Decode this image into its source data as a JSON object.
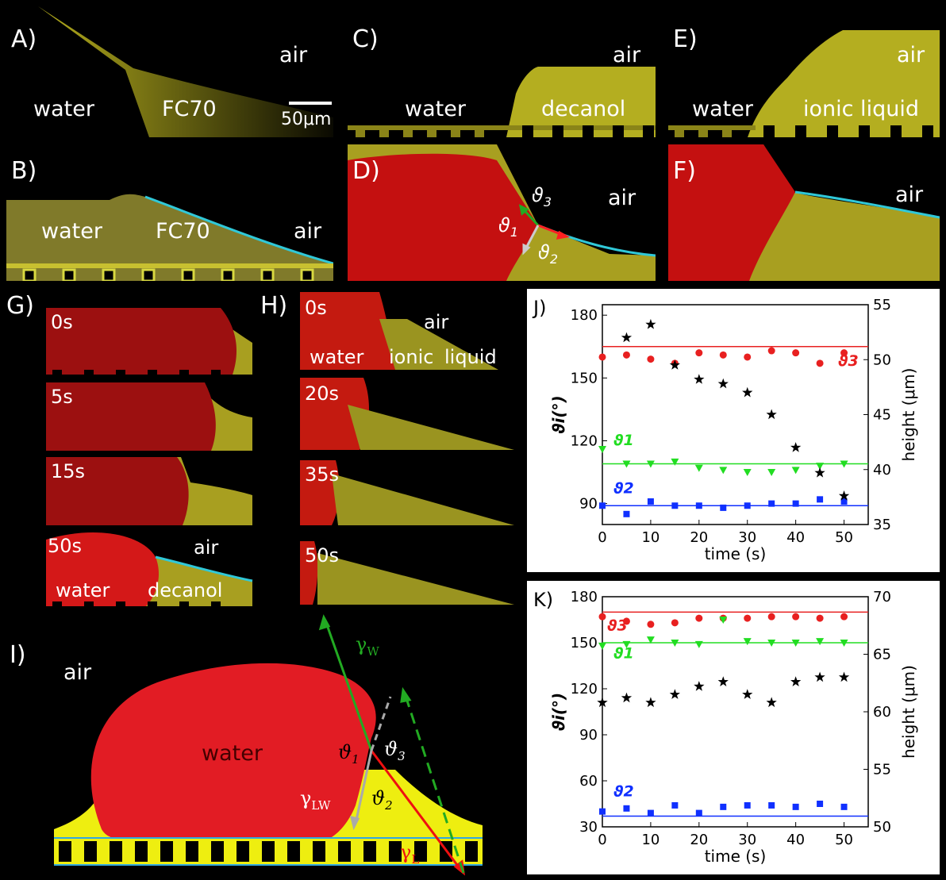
{
  "colors": {
    "water": "#d01818",
    "liquid": "#c8c020",
    "cyan": "#30c8d8",
    "green": "#22aa22",
    "grey": "#aaaaaa",
    "red_arrow": "#ff2020",
    "blue": "#1030ff",
    "star": "#000000"
  },
  "panelA": {
    "label": "A)",
    "water": "water",
    "liquid": "FC70",
    "air": "air",
    "scale": "50μm"
  },
  "panelB": {
    "label": "B)",
    "water": "water",
    "liquid": "FC70",
    "air": "air"
  },
  "panelC": {
    "label": "C)",
    "water": "water",
    "liquid": "decanol",
    "air": "air"
  },
  "panelD": {
    "label": "D)",
    "air": "air",
    "t1": "ϑ",
    "s1": "1",
    "t2": "ϑ",
    "s2": "2",
    "t3": "ϑ",
    "s3": "3"
  },
  "panelE": {
    "label": "E)",
    "water": "water",
    "liquid": "ionic liquid",
    "air": "air"
  },
  "panelF": {
    "label": "F)",
    "air": "air"
  },
  "panelG": {
    "label": "G)",
    "frames": [
      "0s",
      "5s",
      "15s",
      "50s"
    ],
    "air": "air",
    "water": "water",
    "liquid": "decanol"
  },
  "panelH": {
    "label": "H)",
    "frames": [
      "0s",
      "20s",
      "35s",
      "50s"
    ],
    "air": "air",
    "water": "water",
    "liquid1": "ionic",
    "liquid2": "liquid"
  },
  "panelI": {
    "label": "I)",
    "air": "air",
    "water": "water",
    "gW": "γ",
    "gWs": "W",
    "gLW": "γ",
    "gLWs": "LW",
    "gL": "γ",
    "gLs": "L",
    "t1": "ϑ",
    "s1": "1",
    "t2": "ϑ",
    "s2": "2",
    "t3": "ϑ",
    "s3": "3"
  },
  "chart_data": [
    {
      "type": "scatter",
      "panel": "J)",
      "xlabel": "time (s)",
      "ylabel_left": "ϑi(°)",
      "ylabel_right": "height (μm)",
      "xlim": [
        0,
        55
      ],
      "xticks": [
        0,
        10,
        20,
        30,
        40,
        50
      ],
      "ylim_left": [
        80,
        185
      ],
      "yticks_left": [
        90,
        120,
        150,
        180
      ],
      "ylim_right": [
        35,
        55
      ],
      "yticks_right": [
        35,
        40,
        45,
        50,
        55
      ],
      "series": [
        {
          "name": "ϑ3",
          "marker": "circle",
          "color": "#e82020",
          "x": [
            0,
            5,
            10,
            15,
            20,
            25,
            30,
            35,
            40,
            45,
            50
          ],
          "y": [
            160,
            161,
            159,
            157,
            162,
            161,
            160,
            163,
            162,
            157,
            162
          ],
          "fit": 165
        },
        {
          "name": "ϑ1",
          "marker": "triangle-down",
          "color": "#22dd22",
          "x": [
            0,
            5,
            10,
            15,
            20,
            25,
            30,
            35,
            40,
            45,
            50
          ],
          "y": [
            116,
            109,
            109,
            110,
            107,
            106,
            105,
            105,
            106,
            108,
            109
          ],
          "fit": 109
        },
        {
          "name": "ϑ2",
          "marker": "square",
          "color": "#1030ff",
          "x": [
            0,
            5,
            10,
            15,
            20,
            25,
            30,
            35,
            40,
            45,
            50
          ],
          "y": [
            89,
            85,
            91,
            89,
            89,
            88,
            89,
            90,
            90,
            92,
            91
          ],
          "fit": 89
        },
        {
          "marker": "star",
          "color": "#000000",
          "axis": "right",
          "x": [
            5,
            10,
            15,
            20,
            25,
            30,
            35,
            40,
            45,
            50
          ],
          "y": [
            52,
            53.2,
            49.5,
            48.2,
            47.8,
            47,
            45,
            42,
            39.7,
            37.6
          ]
        }
      ]
    },
    {
      "type": "scatter",
      "panel": "K)",
      "xlabel": "time (s)",
      "ylabel_left": "ϑi(°)",
      "ylabel_right": "height (μm)",
      "xlim": [
        0,
        55
      ],
      "xticks": [
        0,
        10,
        20,
        30,
        40,
        50
      ],
      "ylim_left": [
        30,
        180
      ],
      "yticks_left": [
        30,
        60,
        90,
        120,
        150,
        180
      ],
      "ylim_right": [
        50,
        70
      ],
      "yticks_right": [
        50,
        55,
        60,
        65,
        70
      ],
      "series": [
        {
          "name": "ϑ3",
          "marker": "circle",
          "color": "#e82020",
          "x": [
            0,
            5,
            10,
            15,
            20,
            25,
            30,
            35,
            40,
            45,
            50
          ],
          "y": [
            167,
            164,
            162,
            163,
            166,
            166,
            166,
            167,
            167,
            166,
            167
          ],
          "fit": 170
        },
        {
          "name": "ϑ1",
          "marker": "triangle-down",
          "color": "#22dd22",
          "x": [
            0,
            5,
            10,
            15,
            20,
            25,
            30,
            35,
            40,
            45,
            50
          ],
          "y": [
            148,
            149,
            152,
            150,
            149,
            165,
            151,
            150,
            150,
            151,
            150
          ],
          "fit": 150
        },
        {
          "name": "ϑ2",
          "marker": "square",
          "color": "#1030ff",
          "x": [
            0,
            5,
            10,
            15,
            20,
            25,
            30,
            35,
            40,
            45,
            50
          ],
          "y": [
            40,
            42,
            39,
            44,
            39,
            43,
            44,
            44,
            43,
            45,
            43
          ],
          "fit": 37
        },
        {
          "marker": "star",
          "color": "#000000",
          "axis": "right",
          "x": [
            0,
            5,
            10,
            15,
            20,
            25,
            30,
            35,
            40,
            45,
            50
          ],
          "y": [
            60.8,
            61.2,
            60.8,
            61.5,
            62.2,
            62.6,
            61.5,
            60.8,
            62.6,
            63,
            63
          ]
        }
      ]
    }
  ]
}
